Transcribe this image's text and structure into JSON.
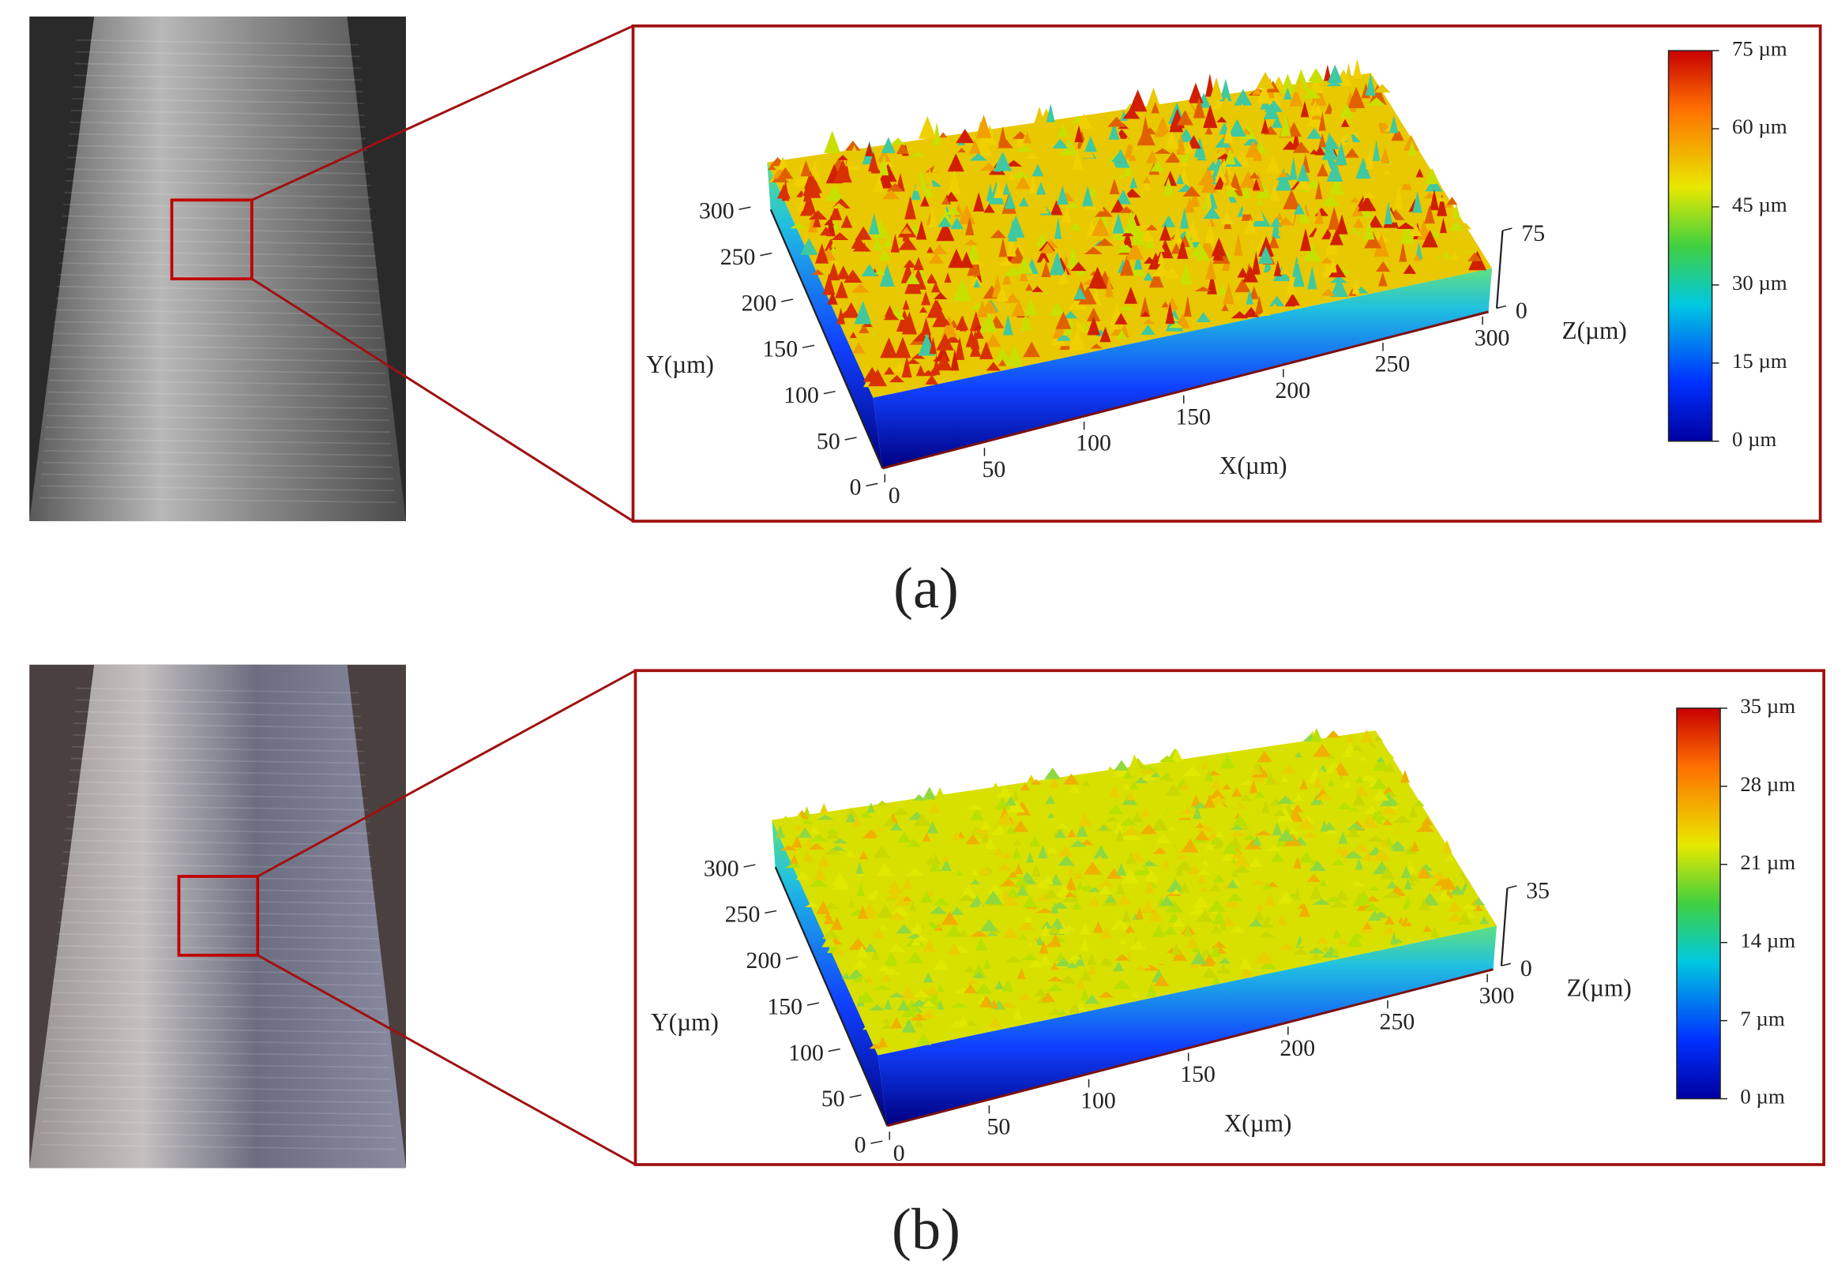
{
  "panels": [
    {
      "label": "(a)",
      "plot": {
        "x_axis": {
          "title": "X(µm)",
          "ticks": [
            0,
            50,
            100,
            150,
            200,
            250,
            300
          ]
        },
        "y_axis": {
          "title": "Y(µm)",
          "ticks": [
            0,
            50,
            100,
            150,
            200,
            250,
            300
          ]
        },
        "z_axis": {
          "title": "Z(µm)",
          "ticks": [
            0,
            75
          ]
        },
        "colorbar": {
          "ticks": [
            "0 µm",
            "15 µm",
            "30 µm",
            "45 µm",
            "60 µm",
            "75 µm"
          ]
        }
      }
    },
    {
      "label": "(b)",
      "plot": {
        "x_axis": {
          "title": "X(µm)",
          "ticks": [
            0,
            50,
            100,
            150,
            200,
            250,
            300
          ]
        },
        "y_axis": {
          "title": "Y(µm)",
          "ticks": [
            0,
            50,
            100,
            150,
            200,
            250,
            300
          ]
        },
        "z_axis": {
          "title": "Z(µm)",
          "ticks": [
            0,
            35
          ]
        },
        "colorbar": {
          "ticks": [
            "0 µm",
            "7 µm",
            "14 µm",
            "21 µm",
            "28 µm",
            "35 µm"
          ]
        }
      }
    }
  ]
}
